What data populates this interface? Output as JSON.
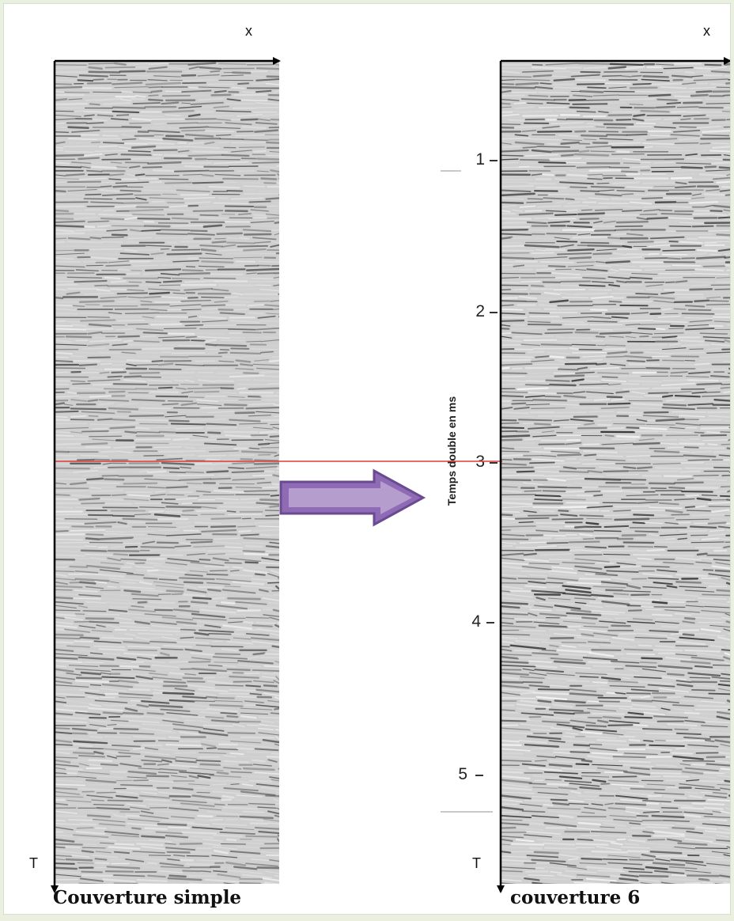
{
  "left_panel": {
    "x_axis_label": "x",
    "t_axis_label": "T",
    "caption": "Couverture simple"
  },
  "right_panel": {
    "x_axis_label": "x",
    "t_axis_label": "T",
    "caption": "couverture 6",
    "time_axis": {
      "title": "Temps double en ms",
      "ticks": [
        "1",
        "2",
        "3",
        "4",
        "5"
      ]
    }
  },
  "colors": {
    "reference_line": "#e03a3a",
    "arrow_fill": "#8e6bb4",
    "arrow_outline": "#6a4a91",
    "background_border": "#e9f0df"
  },
  "icons": {
    "transform_arrow": "right-arrow-icon"
  }
}
